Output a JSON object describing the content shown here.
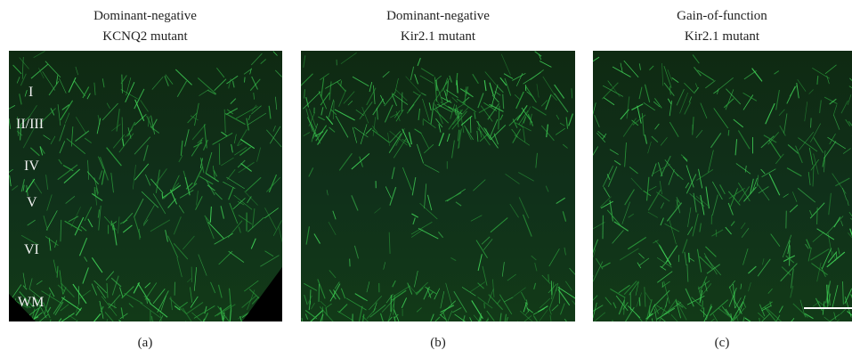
{
  "panels": [
    {
      "title": [
        "Dominant-negative",
        "KCNQ2 mutant"
      ],
      "caption": "(a)"
    },
    {
      "title": [
        "Dominant-negative",
        "Kir2.1 mutant"
      ],
      "caption": "(b)"
    },
    {
      "title": [
        "Gain-of-function",
        "Kir2.1 mutant"
      ],
      "caption": "(c)"
    }
  ],
  "layers": [
    "I",
    "II/III",
    "IV",
    "V",
    "VI",
    "WM"
  ]
}
